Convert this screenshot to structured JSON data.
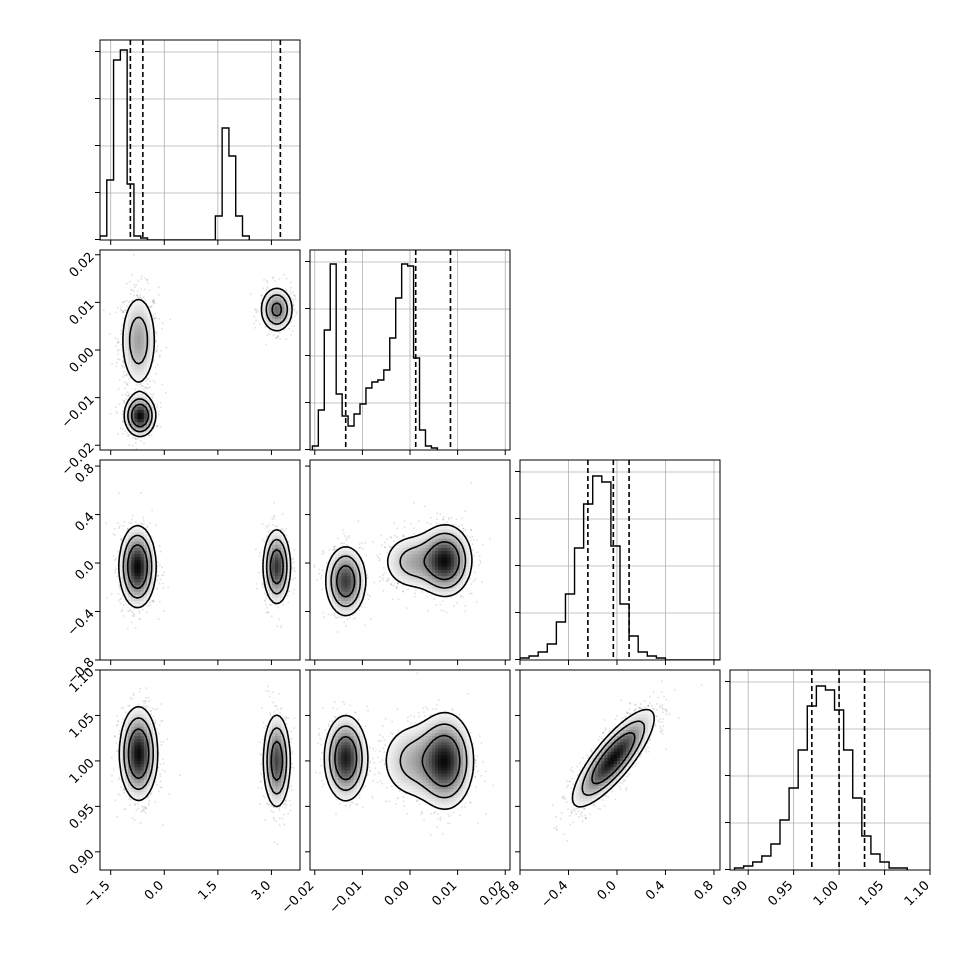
{
  "chart_data": {
    "type": "corner",
    "grid": true,
    "params": [
      {
        "lim": [
          -1.8,
          3.8
        ],
        "ticks": [
          -1.5,
          0.0,
          1.5,
          3.0
        ],
        "tick_labels": [
          "−1.5",
          "0.0",
          "1.5",
          "3.0"
        ]
      },
      {
        "lim": [
          -0.021,
          0.021
        ],
        "ticks": [
          -0.02,
          -0.01,
          0.0,
          0.01,
          0.02
        ],
        "tick_labels": [
          "−0.02",
          "−0.01",
          "0.00",
          "0.01",
          "0.02"
        ]
      },
      {
        "lim": [
          -0.8,
          0.85
        ],
        "ticks": [
          -0.8,
          -0.4,
          0.0,
          0.4,
          0.8
        ],
        "tick_labels": [
          "−0.8",
          "−0.4",
          "0.0",
          "0.4",
          "0.8"
        ]
      },
      {
        "lim": [
          0.88,
          1.1
        ],
        "ticks": [
          0.9,
          0.95,
          1.0,
          1.05,
          1.1
        ],
        "tick_labels": [
          "0.90",
          "0.95",
          "1.00",
          "1.05",
          "1.10"
        ]
      }
    ],
    "histograms": [
      {
        "param": 0,
        "x0": -1.8,
        "bin": 0.19,
        "counts": [
          0.02,
          0.3,
          0.9,
          0.95,
          0.28,
          0.02,
          0.01,
          0,
          0,
          0,
          0,
          0,
          0,
          0,
          0,
          0,
          0,
          0.12,
          0.56,
          0.42,
          0.12,
          0.02
        ],
        "quantiles": [
          -0.95,
          -0.6,
          3.25
        ]
      },
      {
        "param": 1,
        "x0": -0.0205,
        "bin": 0.00125,
        "counts": [
          0.02,
          0.2,
          0.6,
          0.93,
          0.28,
          0.17,
          0.12,
          0.18,
          0.23,
          0.31,
          0.34,
          0.35,
          0.4,
          0.56,
          0.76,
          0.93,
          0.92,
          0.46,
          0.1,
          0.02,
          0.01
        ],
        "quantiles": [
          -0.0135,
          0.0012,
          0.0085
        ]
      },
      {
        "param": 2,
        "x0": -0.8,
        "bin": 0.075,
        "counts": [
          0.01,
          0.02,
          0.04,
          0.08,
          0.19,
          0.33,
          0.56,
          0.78,
          0.92,
          0.89,
          0.57,
          0.28,
          0.12,
          0.04,
          0.02,
          0.01,
          0,
          0,
          0,
          0,
          0,
          0
        ],
        "quantiles": [
          -0.24,
          -0.03,
          0.1
        ]
      },
      {
        "param": 3,
        "x0": 0.885,
        "bin": 0.01,
        "counts": [
          0.01,
          0.02,
          0.04,
          0.07,
          0.13,
          0.25,
          0.41,
          0.6,
          0.82,
          0.92,
          0.9,
          0.8,
          0.6,
          0.36,
          0.17,
          0.08,
          0.04,
          0.01,
          0.01
        ],
        "quantiles": [
          0.97,
          1.0,
          1.028
        ]
      }
    ],
    "blobs": {
      "1-0": [
        {
          "cx": -0.72,
          "cy": 0.002,
          "sx": 0.28,
          "sy": 0.0055,
          "w": 0.45
        },
        {
          "cx": -0.68,
          "cy": -0.0138,
          "sx": 0.22,
          "sy": 0.0022,
          "w": 0.3
        },
        {
          "cx": 3.15,
          "cy": 0.0085,
          "sx": 0.24,
          "sy": 0.0025,
          "w": 0.25
        }
      ],
      "2-0": [
        {
          "cx": -0.75,
          "cy": -0.03,
          "sx": 0.26,
          "sy": 0.17,
          "w": 0.62
        },
        {
          "cx": 3.15,
          "cy": -0.03,
          "sx": 0.2,
          "sy": 0.16,
          "w": 0.38
        }
      ],
      "3-0": [
        {
          "cx": -0.72,
          "cy": 1.008,
          "sx": 0.27,
          "sy": 0.026,
          "w": 0.62
        },
        {
          "cx": 3.15,
          "cy": 1.0,
          "sx": 0.2,
          "sy": 0.027,
          "w": 0.38
        }
      ],
      "2-1": [
        {
          "cx": -0.0135,
          "cy": -0.15,
          "sx": 0.0022,
          "sy": 0.15,
          "w": 0.32
        },
        {
          "cx": 0.0005,
          "cy": 0.01,
          "sx": 0.0035,
          "sy": 0.13,
          "w": 0.22
        },
        {
          "cx": 0.0075,
          "cy": 0.02,
          "sx": 0.0028,
          "sy": 0.15,
          "w": 0.46
        }
      ],
      "3-1": [
        {
          "cx": -0.0135,
          "cy": 1.003,
          "sx": 0.0023,
          "sy": 0.024,
          "w": 0.32
        },
        {
          "cx": 0.0005,
          "cy": 1.0,
          "sx": 0.0038,
          "sy": 0.024,
          "w": 0.22
        },
        {
          "cx": 0.0075,
          "cy": 1.0,
          "sx": 0.003,
          "sy": 0.027,
          "w": 0.46
        }
      ],
      "3-2": [
        {
          "cx": -0.03,
          "cy": 1.003,
          "sx": 0.17,
          "sy": 0.027,
          "rho": 0.82,
          "w": 1.0
        }
      ]
    }
  }
}
